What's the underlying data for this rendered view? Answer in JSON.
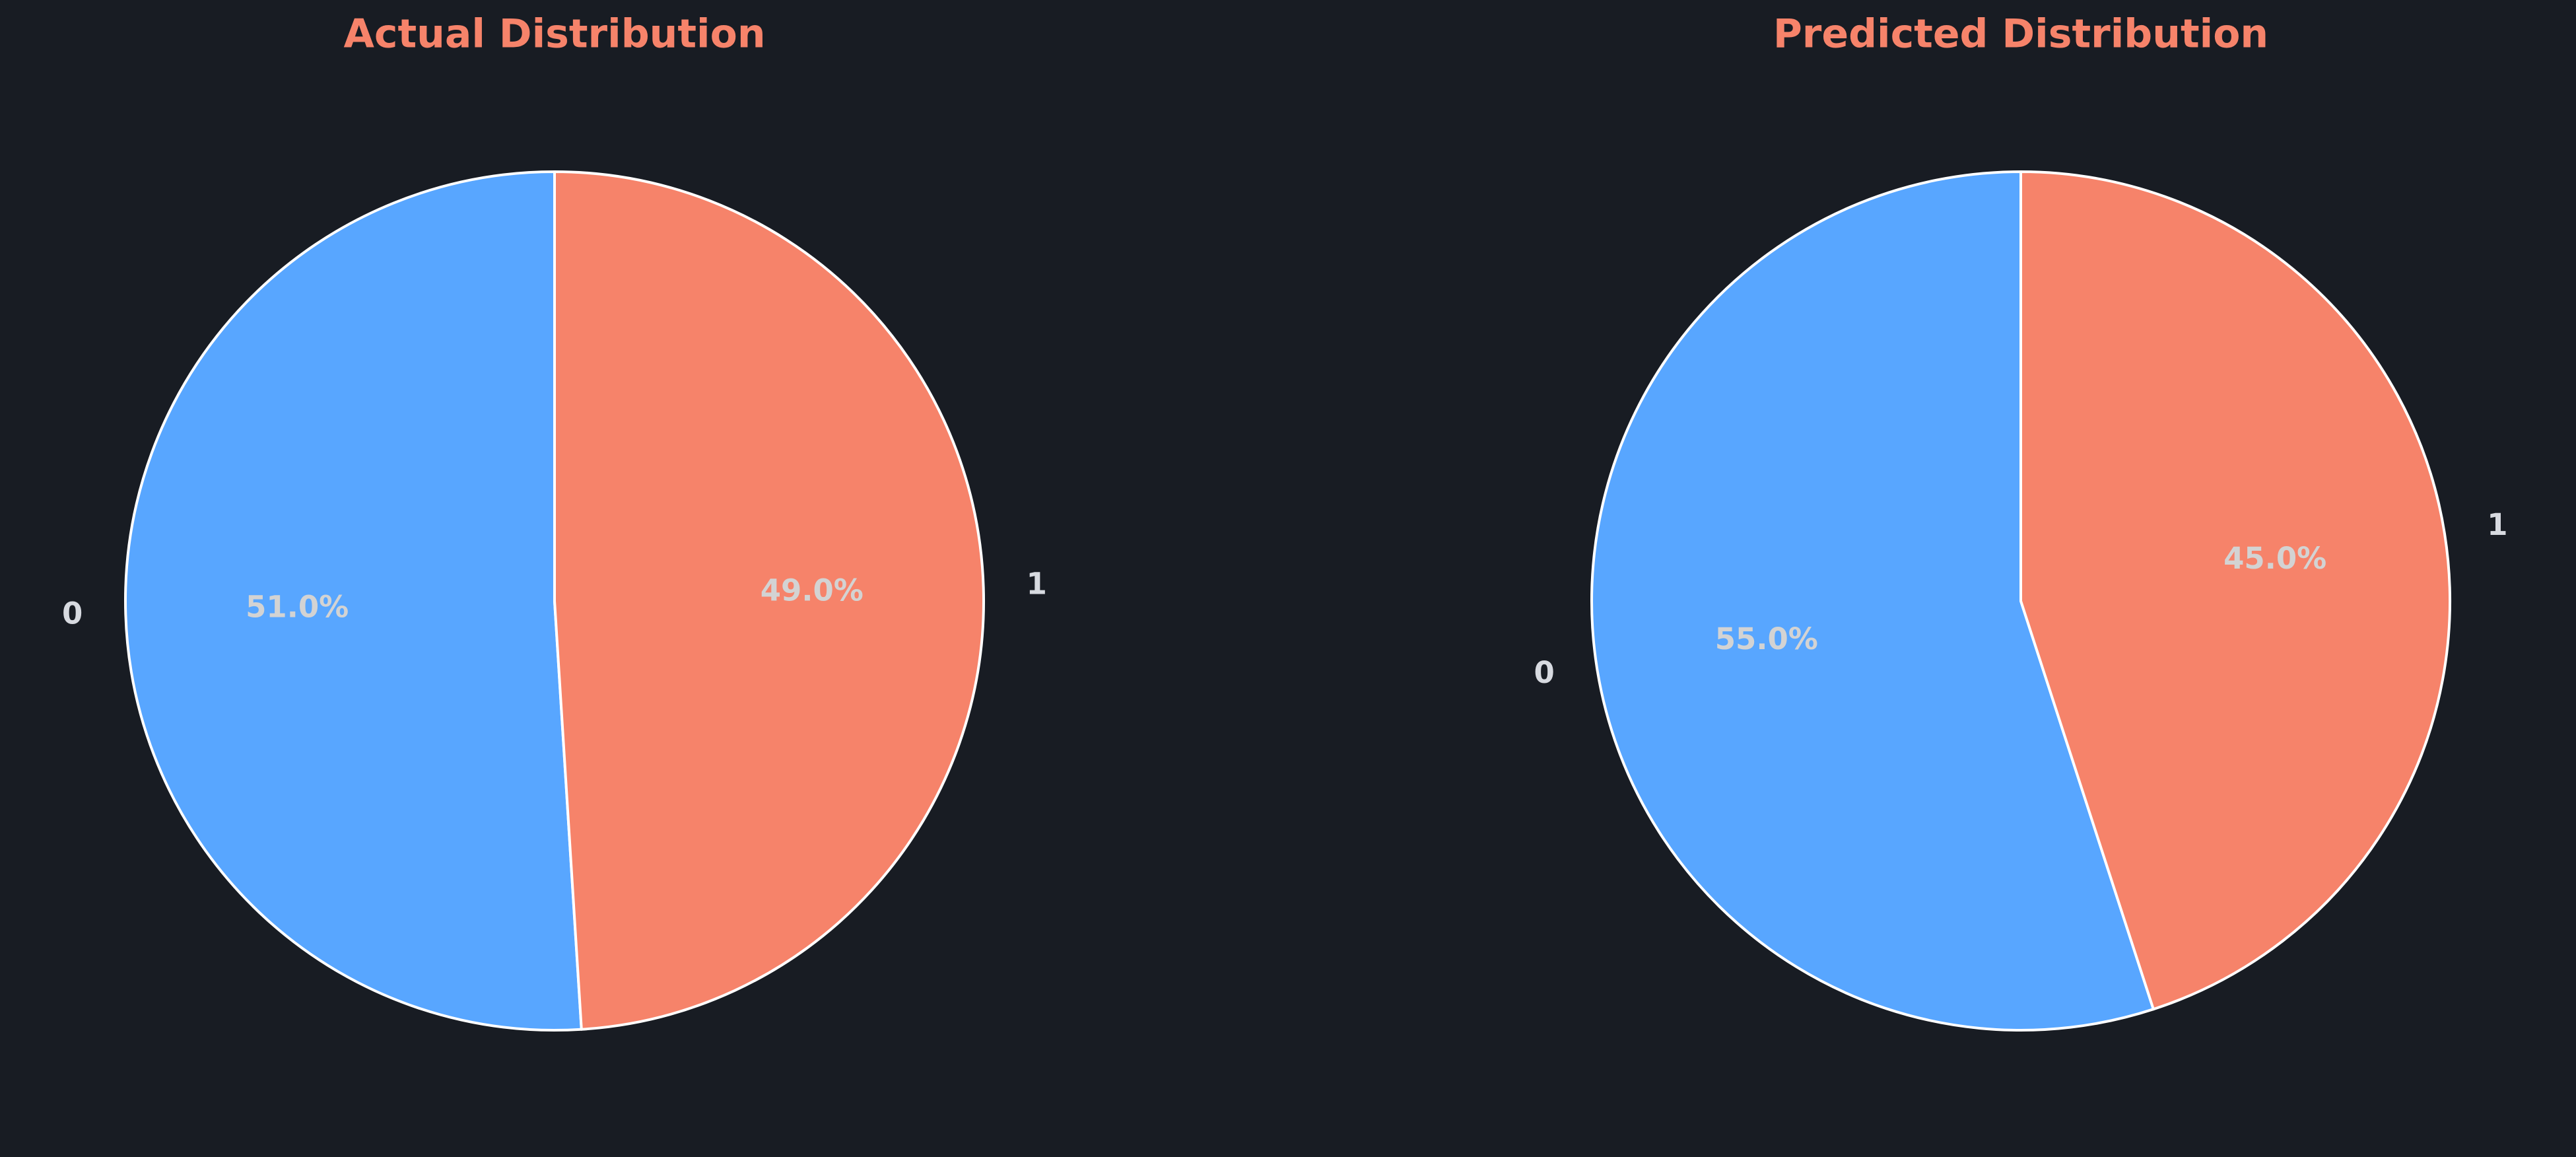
{
  "colors": {
    "background": "#181c23",
    "title": "#f6836a",
    "wedge_edge": "#ffffff",
    "category_label": "#d7dae0",
    "percent_label": "#d3d3d3"
  },
  "chart_data": [
    {
      "type": "pie",
      "title": "Actual Distribution",
      "categories": [
        "0",
        "1"
      ],
      "values": [
        51.0,
        49.0
      ],
      "percent_labels": [
        "51.0%",
        "49.0%"
      ],
      "colors": [
        "#58a6ff",
        "#f6836a"
      ],
      "start_angle_deg": 90,
      "direction": "counterclockwise"
    },
    {
      "type": "pie",
      "title": "Predicted Distribution",
      "categories": [
        "0",
        "1"
      ],
      "values": [
        55.0,
        45.0
      ],
      "percent_labels": [
        "55.0%",
        "45.0%"
      ],
      "colors": [
        "#58a6ff",
        "#f6836a"
      ],
      "start_angle_deg": 90,
      "direction": "counterclockwise"
    }
  ]
}
